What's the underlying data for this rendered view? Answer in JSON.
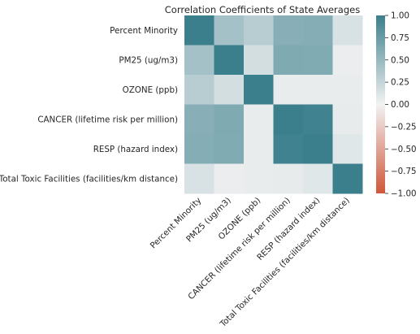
{
  "chart_data": {
    "type": "heatmap",
    "title": "Correlation Coefficients of State Averages",
    "row_labels": [
      "Percent Minority",
      "PM25 (ug/m3)",
      "OZONE (ppb)",
      "CANCER (lifetime risk per million)",
      "RESP (hazard index)",
      "Total Toxic Facilities (facilities/km distance)"
    ],
    "col_labels": [
      "Percent Minority",
      "PM25 (ug/m3)",
      "OZONE (ppb)",
      "CANCER (lifetime risk per million)",
      "RESP (hazard index)",
      "Total Toxic Facilities (facilities/km distance)"
    ],
    "values": [
      [
        1.0,
        0.43,
        0.32,
        0.58,
        0.6,
        0.14
      ],
      [
        0.43,
        1.0,
        0.17,
        0.63,
        0.62,
        0.04
      ],
      [
        0.32,
        0.17,
        1.0,
        0.05,
        0.05,
        0.05
      ],
      [
        0.58,
        0.63,
        0.05,
        1.0,
        0.97,
        0.06
      ],
      [
        0.6,
        0.62,
        0.05,
        0.97,
        1.0,
        0.1
      ],
      [
        0.14,
        0.04,
        0.05,
        0.06,
        0.1,
        1.0
      ]
    ],
    "colorbar": {
      "vmin": -1.0,
      "vmax": 1.0,
      "ticks": [
        1.0,
        0.75,
        0.5,
        0.25,
        0.0,
        -0.25,
        -0.5,
        -0.75,
        -1.0
      ],
      "tick_labels": [
        "1.00",
        "0.75",
        "0.50",
        "0.25",
        "0.00",
        "−0.25",
        "−0.50",
        "−0.75",
        "−1.00"
      ],
      "colors": {
        "negative": "#d0563a",
        "center": "#f2f2f2",
        "positive": "#3b7f8c"
      }
    }
  }
}
